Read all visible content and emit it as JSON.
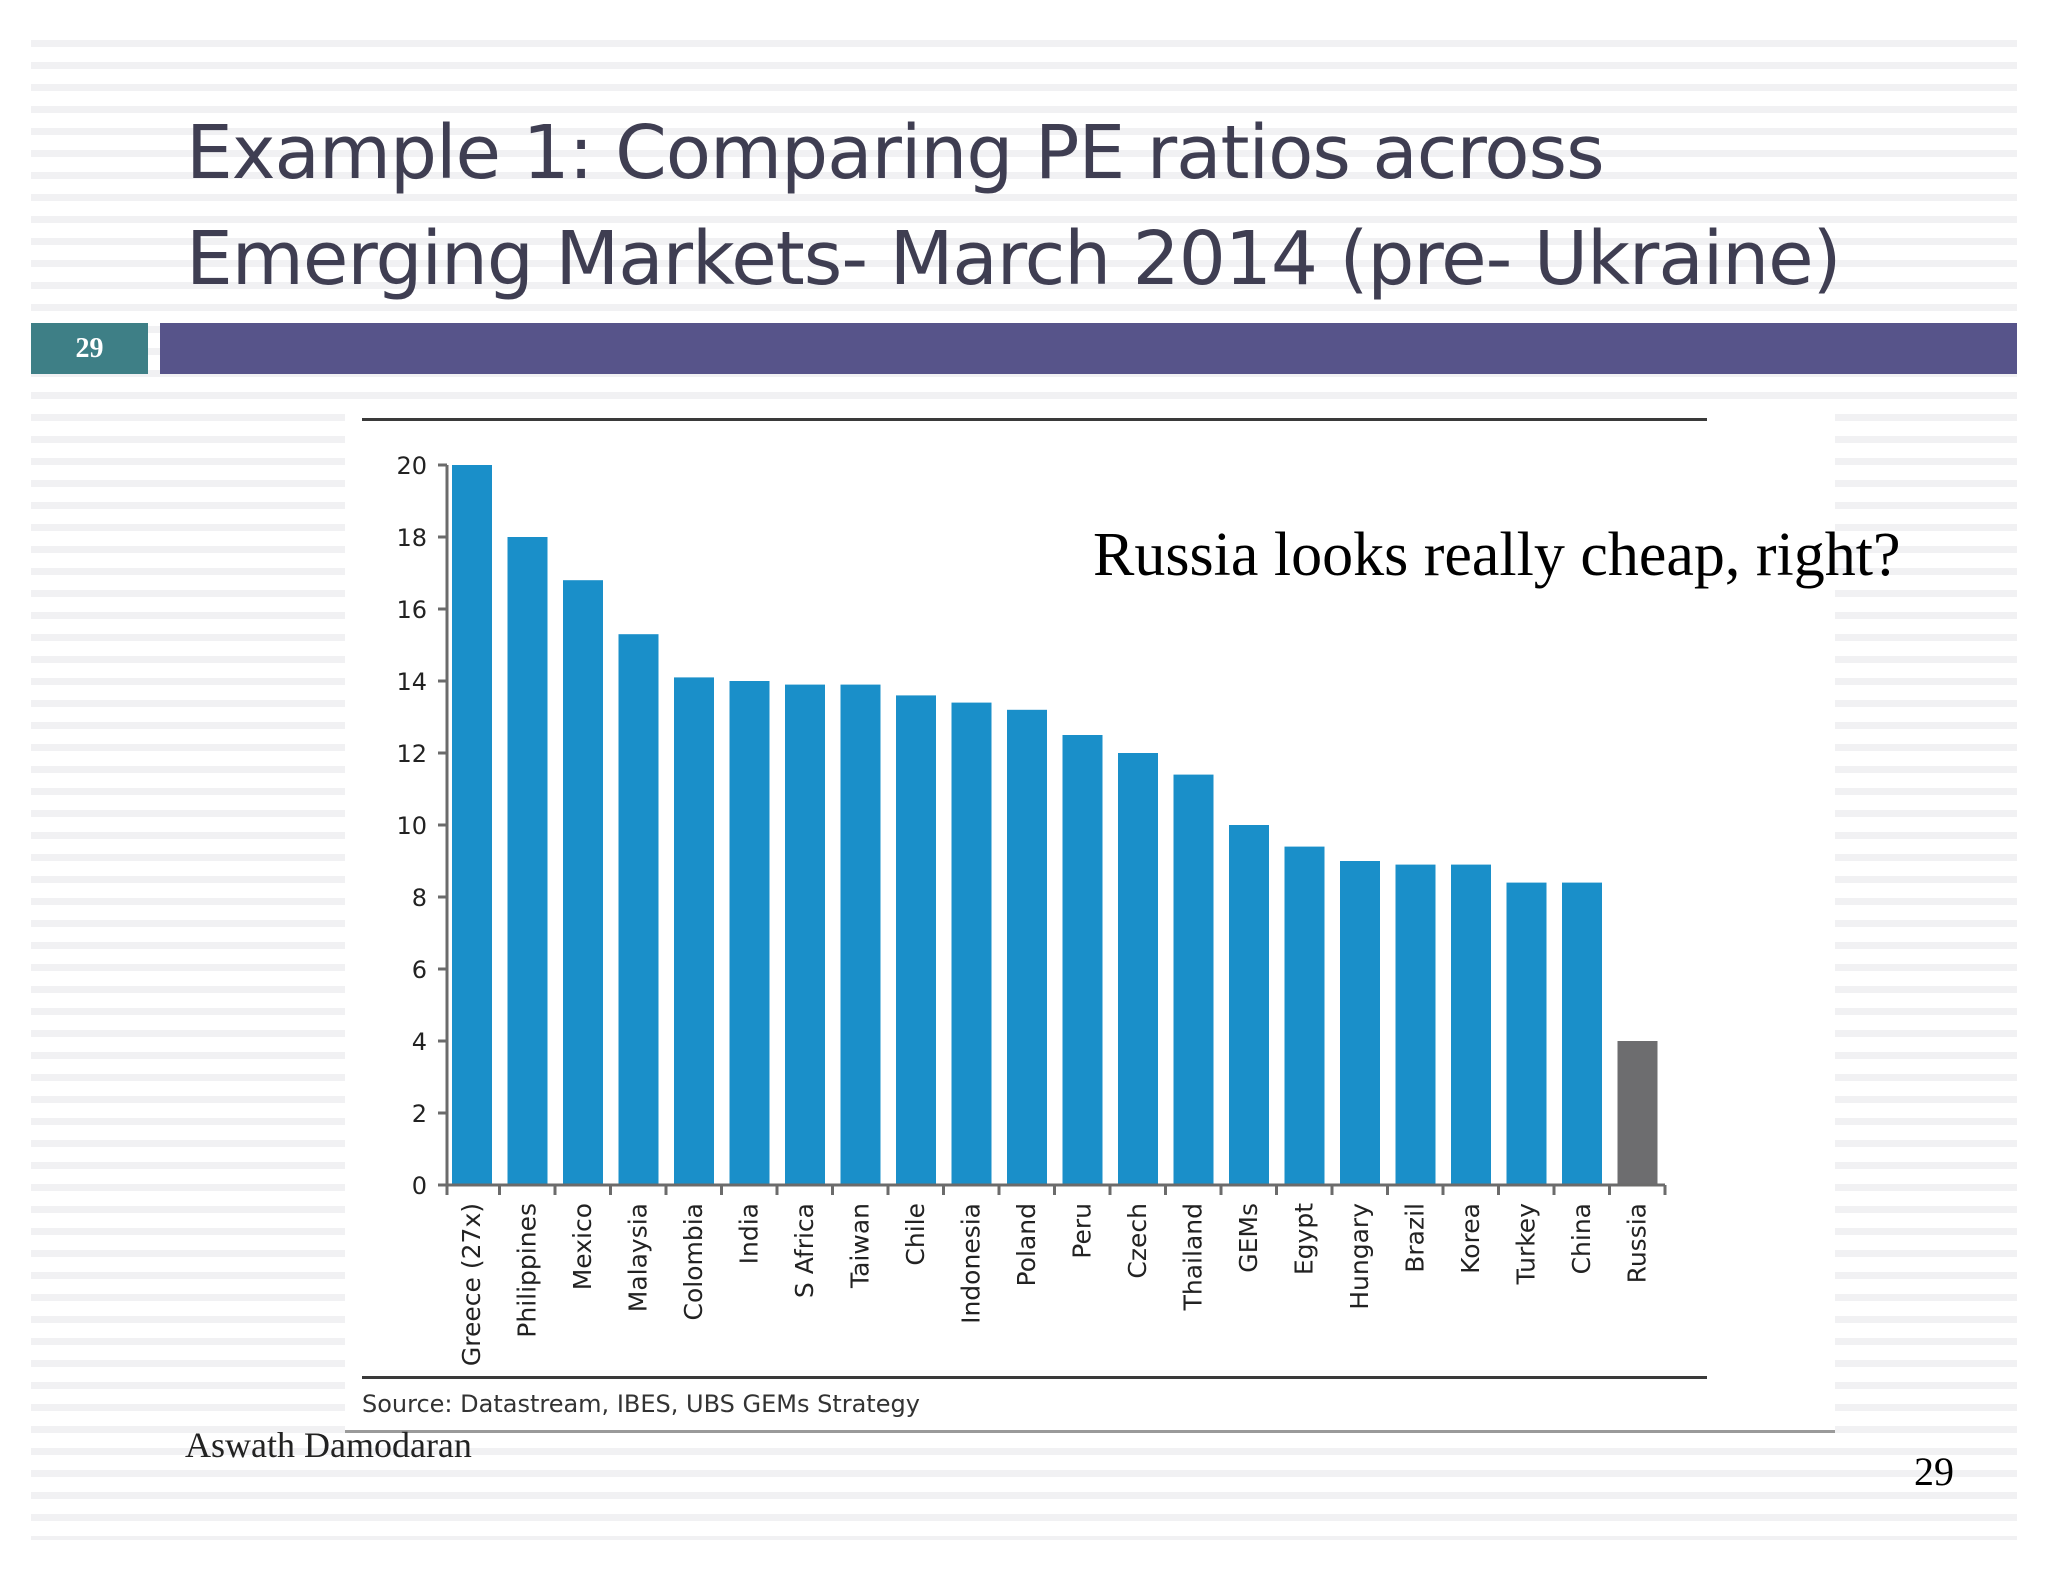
{
  "slide": {
    "title_line1": "Example 1: Comparing PE ratios across",
    "title_line2": "Emerging Markets- March 2014 (pre- Ukraine)",
    "slide_number_badge": "29",
    "annotation": "Russia looks really cheap, right?",
    "source": "Source:  Datastream, IBES, UBS GEMs Strategy",
    "author": "Aswath Damodaran",
    "page_number": "29",
    "colors": {
      "title": "#3f3e52",
      "badge": "#3e7f86",
      "header_bar": "#57548a",
      "bar": "#1a8fc9",
      "highlight_bar": "#6d6d6f"
    }
  },
  "chart_data": {
    "type": "bar",
    "title": "",
    "xlabel": "",
    "ylabel": "",
    "ylim": [
      0,
      20
    ],
    "yticks": [
      0,
      2,
      4,
      6,
      8,
      10,
      12,
      14,
      16,
      18,
      20
    ],
    "grid": false,
    "legend": null,
    "categories": [
      "Greece (27x)",
      "Philippines",
      "Mexico",
      "Malaysia",
      "Colombia",
      "India",
      "S Africa",
      "Taiwan",
      "Chile",
      "Indonesia",
      "Poland",
      "Peru",
      "Czech",
      "Thailand",
      "GEMs",
      "Egypt",
      "Hungary",
      "Brazil",
      "Korea",
      "Turkey",
      "China",
      "Russia"
    ],
    "values": [
      20.0,
      18.0,
      16.8,
      15.3,
      14.1,
      14.0,
      13.9,
      13.9,
      13.6,
      13.4,
      13.2,
      12.5,
      12.0,
      11.4,
      10.0,
      9.4,
      9.0,
      8.9,
      8.9,
      8.4,
      8.4,
      4.0
    ],
    "highlighted": [
      "Russia"
    ],
    "annotations": [
      "Greece value truncated at 20 (actual 27x)",
      "Russia looks really cheap, right?"
    ]
  }
}
